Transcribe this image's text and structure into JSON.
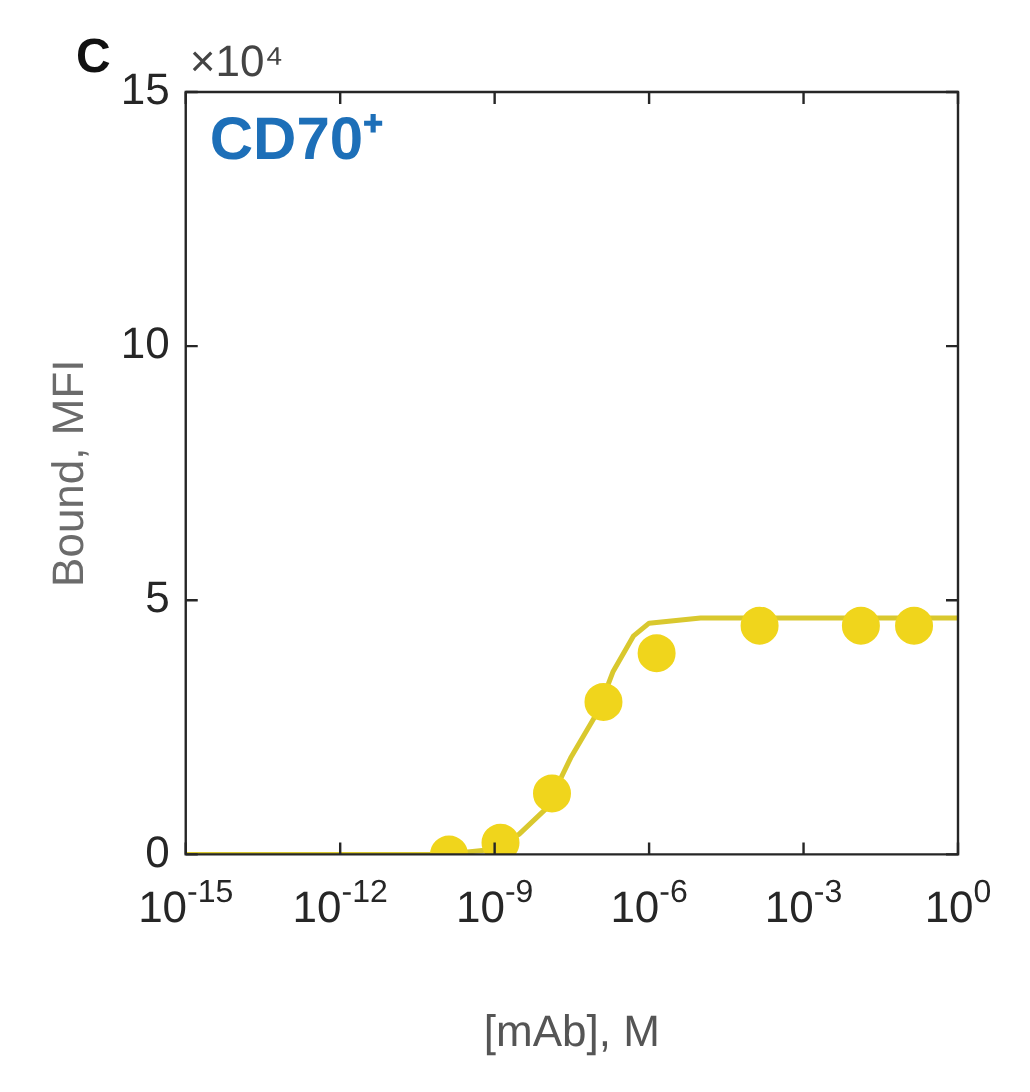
{
  "chart_data": {
    "type": "scatter",
    "title": "CD70⁺",
    "xlabel": "[mAb], M",
    "ylabel": "Bound, MFI",
    "annotations": [
      "C",
      "×10⁴"
    ],
    "log": "x",
    "xlim": [
      1e-15,
      1
    ],
    "xticks": [
      {
        "value": 1e-15,
        "label": "10$^{-15}$"
      },
      {
        "value": 1e-12,
        "label": "10$^{-12}$"
      },
      {
        "value": 1e-09,
        "label": "10$^{-9}$"
      },
      {
        "value": 1e-06,
        "label": "10$^{-6}$"
      },
      {
        "value": 0.001,
        "label": "10$^{-3}$"
      },
      {
        "value": 1,
        "label": "10$^{0}$"
      }
    ],
    "ylim": [
      0,
      15
    ],
    "yticks": [
      0,
      5,
      10,
      15
    ],
    "grid": false,
    "legend": false,
    "series": [
      {
        "type": "scatter",
        "marker": "circle",
        "color": "#f0d51c",
        "x": [
          1.3e-10,
          1.3e-09,
          1.3e-08,
          1.3e-07,
          1.4e-06,
          0.00014,
          0.013,
          0.14
        ],
        "values": [
          0,
          0.23,
          1.2,
          3.0,
          3.96,
          4.5,
          4.5,
          4.5
        ]
      },
      {
        "type": "line",
        "marker": "none",
        "color": "#d9c82e",
        "x": [
          1e-15,
          1e-10,
          1e-09,
          3e-09,
          1e-08,
          3e-08,
          1e-07,
          2e-07,
          5e-07,
          1e-06,
          1e-05,
          1
        ],
        "values": [
          0,
          0,
          0.1,
          0.4,
          0.9,
          1.9,
          2.8,
          3.6,
          4.3,
          4.55,
          4.65,
          4.65
        ]
      }
    ]
  }
}
